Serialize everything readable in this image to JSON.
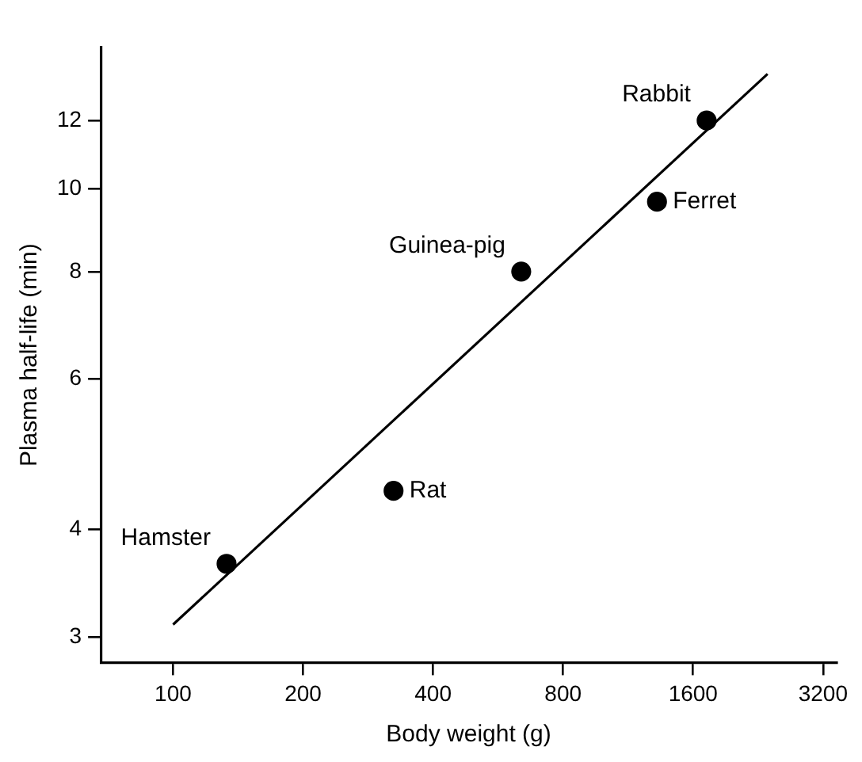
{
  "chart_data": {
    "type": "scatter",
    "xlabel": "Body weight (g)",
    "ylabel": "Plasma half-life (min)",
    "log": "xy",
    "xlim": [
      68,
      3440
    ],
    "ylim": [
      2.8,
      14.6
    ],
    "xticks": [
      100,
      200,
      400,
      800,
      1600,
      3200
    ],
    "yticks": [
      3,
      4,
      6,
      8,
      10,
      12
    ],
    "series": [
      {
        "type": "scatter",
        "marker": "circle",
        "color": "#000000",
        "x": [
          133,
          324,
          640,
          1320,
          1720
        ],
        "values": [
          3.65,
          4.44,
          8.0,
          9.65,
          12
        ]
      },
      {
        "type": "line",
        "marker": "none",
        "color": "#000000",
        "x": [
          100,
          2380
        ],
        "values": [
          3.1,
          13.6
        ]
      }
    ],
    "annotations": [
      {
        "text": "Hamster",
        "x": 133,
        "y": 3.65
      },
      {
        "text": "Rat",
        "x": 324,
        "y": 4.44
      },
      {
        "text": "Guinea-pig",
        "x": 640,
        "y": 8.0
      },
      {
        "text": "Ferret",
        "x": 1320,
        "y": 9.65
      },
      {
        "text": "Rabbit",
        "x": 1720,
        "y": 12
      }
    ]
  }
}
